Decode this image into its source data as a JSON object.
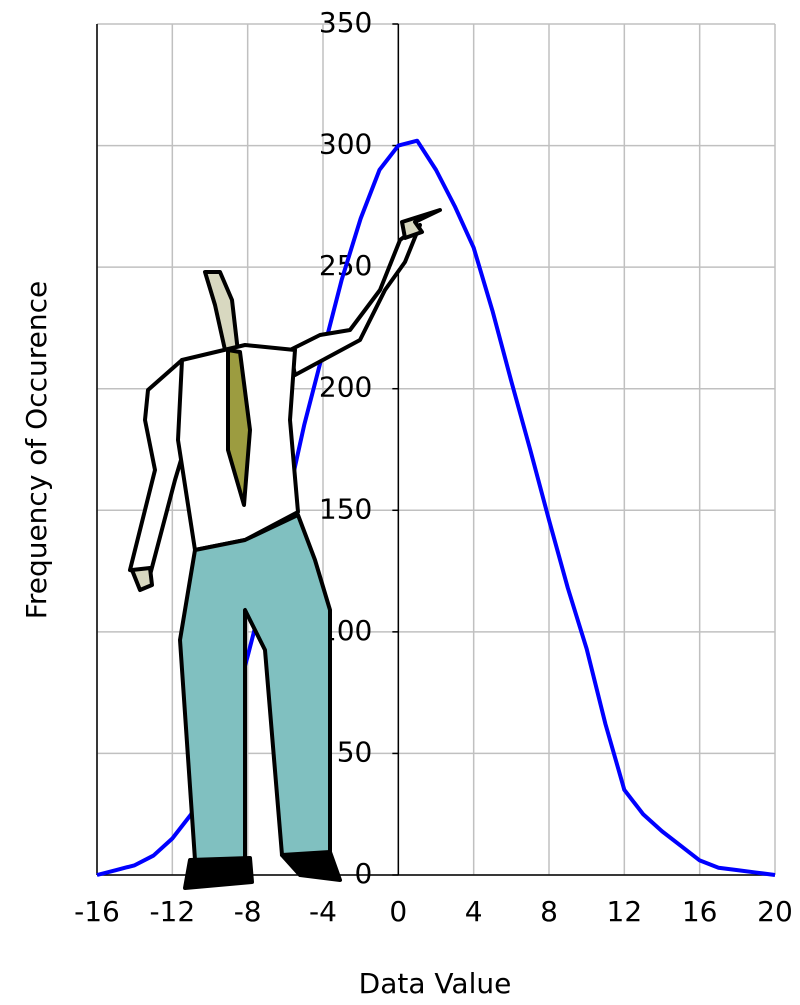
{
  "chart_data": {
    "type": "line",
    "x_label": "Data Value",
    "y_label": "Frequency of Occurence",
    "xlim": [
      -16,
      20
    ],
    "xticks": [
      -16,
      -12,
      -8,
      -4,
      0,
      4,
      8,
      12,
      16,
      20
    ],
    "ylim": [
      0,
      350
    ],
    "yticks": [
      0,
      50,
      100,
      150,
      200,
      250,
      300,
      350
    ],
    "grid": true,
    "series": [
      {
        "color": "#0000ff",
        "x": [
          -16,
          -15,
          -14,
          -13,
          -12,
          -11,
          -10,
          -9,
          -8,
          -7,
          -6,
          -5,
          -4,
          -3,
          -2,
          -1,
          0,
          1,
          2,
          3,
          4,
          5,
          6,
          7,
          8,
          9,
          10,
          11,
          12,
          13,
          14,
          15,
          16,
          17,
          18,
          19,
          20
        ],
        "values": [
          0,
          2,
          4,
          8,
          15,
          25,
          40,
          62,
          90,
          120,
          150,
          185,
          215,
          245,
          270,
          290,
          300,
          302,
          290,
          275,
          258,
          232,
          203,
          175,
          146,
          118,
          93,
          62,
          35,
          25,
          18,
          12,
          6,
          3,
          2,
          1,
          0
        ]
      }
    ]
  }
}
